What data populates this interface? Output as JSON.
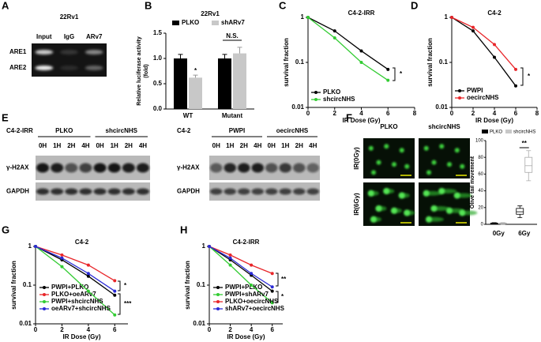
{
  "panel_letters": [
    "A",
    "B",
    "C",
    "D",
    "E",
    "F",
    "G",
    "H"
  ],
  "gel_a": {
    "title": "22Rv1",
    "lanes": [
      "Input",
      "IgG",
      "ARv7"
    ],
    "rows": [
      "ARE1",
      "ARE2"
    ]
  },
  "gel_e": [
    {
      "cell": "C4-2-IRR",
      "groups": [
        "PLKO",
        "shcircNHS"
      ],
      "lanes": [
        "0H",
        "1H",
        "2H",
        "4H",
        "0H",
        "1H",
        "2H",
        "4H"
      ],
      "rows": [
        "γ-H2AX",
        "GAPDH"
      ]
    },
    {
      "cell": "C4-2",
      "groups": [
        "PWPI",
        "oecircNHS"
      ],
      "lanes": [
        "0H",
        "1H",
        "2H",
        "4H",
        "0H",
        "1H",
        "2H",
        "4H"
      ],
      "rows": [
        "γ-H2AX",
        "GAPDH"
      ]
    }
  ],
  "images_f": {
    "columns": [
      "PLKO",
      "shcircNHS"
    ],
    "rows": [
      "IR(0Gy)",
      "IR(6Gy)"
    ]
  },
  "chart_data": [
    {
      "type": "bar",
      "title": "22Rv1",
      "ylabel": [
        "Relative luciferase activity",
        "(fold)"
      ],
      "categories": [
        "WT",
        "Mutant"
      ],
      "series": [
        {
          "name": "PLKO",
          "color": "#000000",
          "values": [
            1.0,
            1.0
          ],
          "errors": [
            0.08,
            0.08
          ]
        },
        {
          "name": "shARv7",
          "color": "#c8c8c8",
          "values": [
            0.62,
            1.1
          ],
          "errors": [
            0.05,
            0.12
          ]
        }
      ],
      "ylim": [
        0,
        1.5
      ],
      "yticks": [
        {
          "value": 0,
          "label": "0.0"
        },
        {
          "value": 0.5,
          "label": "0.5"
        },
        {
          "value": 1,
          "label": "1.0"
        },
        {
          "value": 1.5,
          "label": "1.5"
        }
      ],
      "annotations": [
        "*",
        "N.S."
      ]
    },
    {
      "type": "line",
      "title": "C4-2-IRR",
      "xlabel": "IR Dose (Gy)",
      "ylabel": "survival fraction",
      "log_y": true,
      "x": [
        0,
        2,
        4,
        6
      ],
      "series": [
        {
          "name": "PLKO",
          "color": "#000000",
          "values": [
            1,
            0.5,
            0.18,
            0.07
          ]
        },
        {
          "name": "shcircNHS",
          "color": "#33cc33",
          "values": [
            1,
            0.35,
            0.1,
            0.04
          ]
        }
      ],
      "xlim": [
        0,
        8
      ],
      "xticks": [
        0,
        2,
        4,
        6,
        8
      ],
      "ylim": [
        0.01,
        1
      ],
      "yticks": [
        0.01,
        0.1,
        1
      ],
      "annotations": [
        "*"
      ]
    },
    {
      "type": "line",
      "title": "C4-2",
      "xlabel": "IR Dose (Gy)",
      "ylabel": "survival fraction",
      "log_y": true,
      "x": [
        0,
        2,
        4,
        6
      ],
      "series": [
        {
          "name": "PWPI",
          "color": "#000000",
          "values": [
            1,
            0.5,
            0.13,
            0.03
          ]
        },
        {
          "name": "oecircNHS",
          "color": "#e8262a",
          "values": [
            1,
            0.6,
            0.25,
            0.07
          ]
        }
      ],
      "xlim": [
        0,
        8
      ],
      "xticks": [
        0,
        2,
        4,
        6,
        8
      ],
      "ylim": [
        0.01,
        1
      ],
      "yticks": [
        0.01,
        0.1,
        1
      ],
      "annotations": [
        "*"
      ]
    },
    {
      "type": "box",
      "ylabel": "Olive tail movement",
      "categories": [
        "0Gy",
        "6Gy"
      ],
      "series": [
        {
          "name": "PLKO",
          "color": "#000000",
          "values": [
            {
              "min": 0,
              "q1": 0.5,
              "median": 1,
              "q3": 1.5,
              "max": 2
            },
            {
              "min": 8,
              "q1": 12,
              "median": 15,
              "q3": 19,
              "max": 22
            }
          ]
        },
        {
          "name": "shcircNHS",
          "color": "#c8c8c8",
          "values": [
            {
              "min": 0,
              "q1": 0.5,
              "median": 1,
              "q3": 1.5,
              "max": 2
            },
            {
              "min": 52,
              "q1": 62,
              "median": 70,
              "q3": 80,
              "max": 88
            }
          ]
        }
      ],
      "ylim": [
        0,
        100
      ],
      "yticks": [
        0,
        20,
        40,
        60,
        80,
        100
      ],
      "annotations": [
        "**"
      ]
    },
    {
      "type": "line",
      "title": "C4-2",
      "xlabel": "IR Dose (Gy)",
      "ylabel": "survival fraction",
      "log_y": true,
      "x": [
        0,
        2,
        4,
        6
      ],
      "series": [
        {
          "name": "PWPI+PLKO",
          "color": "#000000",
          "values": [
            1,
            0.45,
            0.17,
            0.055
          ]
        },
        {
          "name": "PLKO+oeARv7",
          "color": "#e8262a",
          "values": [
            1,
            0.6,
            0.33,
            0.13
          ]
        },
        {
          "name": "PWPI+shcircNHS",
          "color": "#33cc33",
          "values": [
            1,
            0.3,
            0.07,
            0.017
          ]
        },
        {
          "name": "oeARv7+shcircNHS",
          "color": "#2a2ad6",
          "values": [
            1,
            0.5,
            0.2,
            0.07
          ]
        }
      ],
      "xlim": [
        0,
        7
      ],
      "xticks": [
        0,
        2,
        4,
        6
      ],
      "ylim": [
        0.01,
        1
      ],
      "yticks": [
        0.01,
        0.1,
        1
      ],
      "annotations": [
        "*",
        "***"
      ]
    },
    {
      "type": "line",
      "title": "C4-2-IRR",
      "xlabel": "IR Dose (Gy)",
      "ylabel": "survival fraction",
      "log_y": true,
      "x": [
        0,
        2,
        4,
        6
      ],
      "series": [
        {
          "name": "PWPI+PLKO",
          "color": "#000000",
          "values": [
            1,
            0.45,
            0.18,
            0.07
          ]
        },
        {
          "name": "PWPI+shARv7",
          "color": "#33cc33",
          "values": [
            1,
            0.33,
            0.1,
            0.035
          ]
        },
        {
          "name": "PLKO+oecircNHS",
          "color": "#e8262a",
          "values": [
            1,
            0.6,
            0.33,
            0.2
          ]
        },
        {
          "name": "shARv7+oecircNHS",
          "color": "#2a2ad6",
          "values": [
            1,
            0.5,
            0.2,
            0.09
          ]
        }
      ],
      "xlim": [
        0,
        7
      ],
      "xticks": [
        0,
        2,
        4,
        6
      ],
      "ylim": [
        0.01,
        1
      ],
      "yticks": [
        0.01,
        0.1,
        1
      ],
      "annotations": [
        "**",
        "*"
      ]
    }
  ]
}
